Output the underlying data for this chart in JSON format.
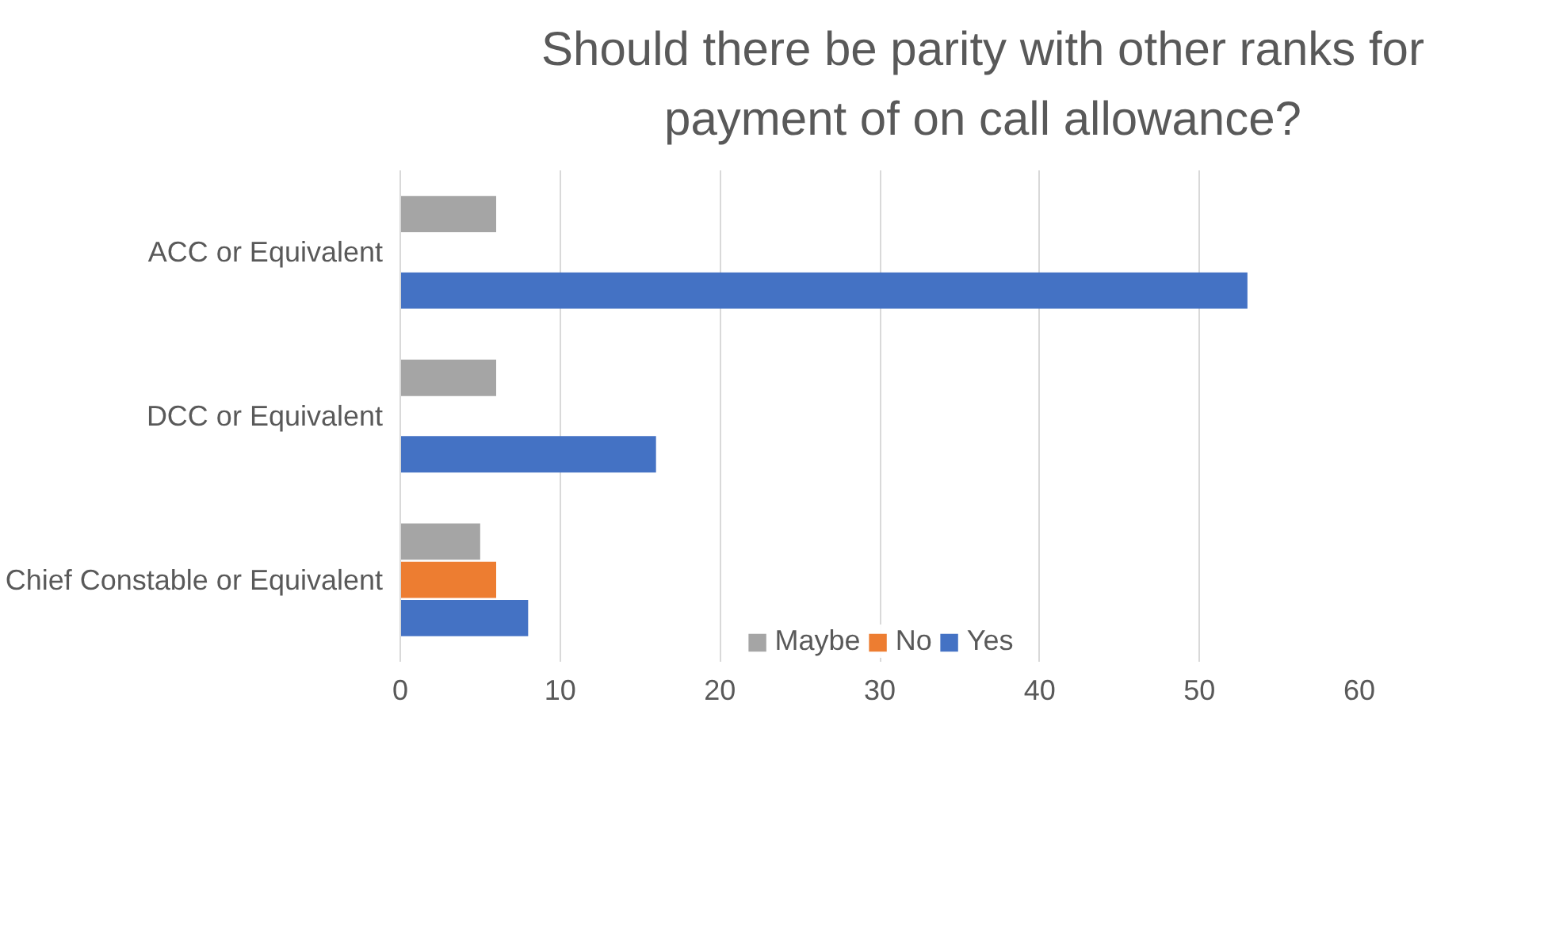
{
  "chart_data": {
    "type": "bar",
    "orientation": "horizontal",
    "title": "Should there be parity with other ranks for payment of on call allowance?",
    "categories": [
      "ACC or Equivalent",
      "DCC or Equivalent",
      "Chief Constable or Equivalent"
    ],
    "series": [
      {
        "name": "Maybe",
        "color": "#a5a5a5",
        "values": [
          6,
          6,
          5
        ]
      },
      {
        "name": "No",
        "color": "#ed7d31",
        "values": [
          null,
          null,
          6
        ]
      },
      {
        "name": "Yes",
        "color": "#4472c4",
        "values": [
          53,
          16,
          8
        ]
      }
    ],
    "xlim": [
      0,
      60
    ],
    "xticks": [
      0,
      10,
      20,
      30,
      40,
      50,
      60
    ],
    "grid": "x",
    "legend": "bottom"
  }
}
